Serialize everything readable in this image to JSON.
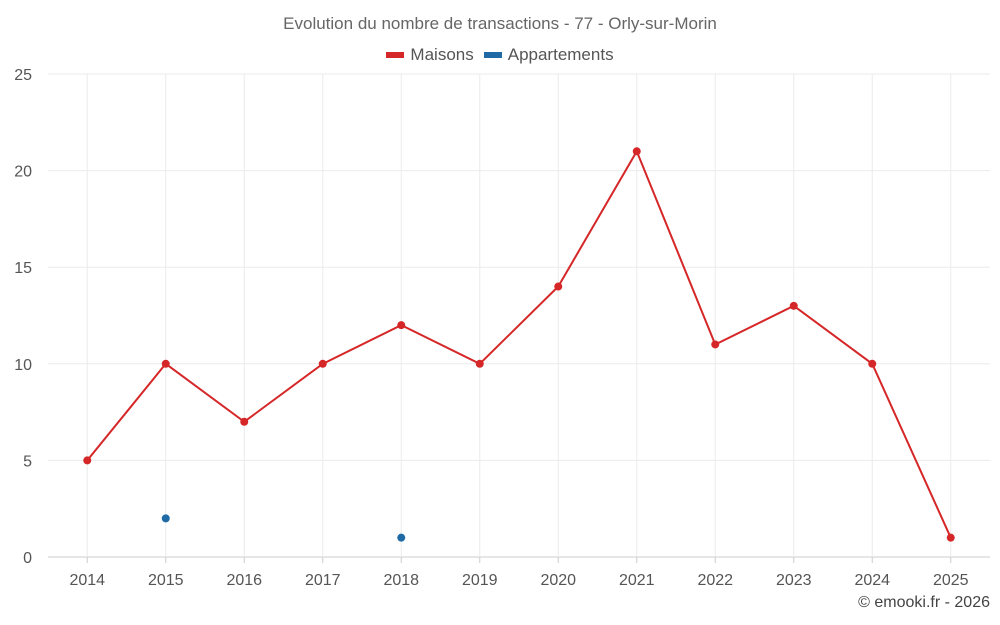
{
  "chart_data": {
    "type": "line",
    "title": "Evolution du nombre de transactions - 77 - Orly-sur-Morin",
    "categories": [
      "2014",
      "2015",
      "2016",
      "2017",
      "2018",
      "2019",
      "2020",
      "2021",
      "2022",
      "2023",
      "2024",
      "2025"
    ],
    "ylim": [
      0,
      25
    ],
    "yticks": [
      0,
      5,
      10,
      15,
      20,
      25
    ],
    "grid": true,
    "legend_position": "top-center",
    "series": [
      {
        "name": "Maisons",
        "color": "#d62728",
        "values": [
          5,
          10,
          7,
          10,
          12,
          10,
          14,
          21,
          11,
          13,
          10,
          1
        ]
      },
      {
        "name": "Appartements",
        "color": "#1f6aa5",
        "values": [
          null,
          2,
          null,
          null,
          1,
          null,
          null,
          null,
          null,
          null,
          null,
          null
        ]
      }
    ]
  },
  "credit": "© emooki.fr - 2026"
}
